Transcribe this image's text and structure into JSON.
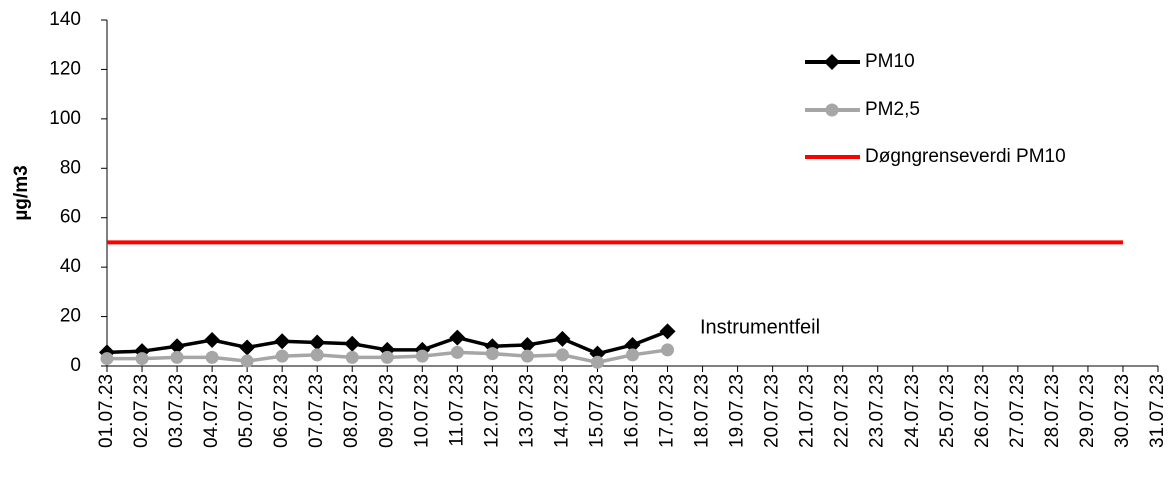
{
  "chart_data": {
    "type": "line",
    "y_label": "µg/m3",
    "annotation": "Instrumentfeil",
    "categories": [
      "01.07.23",
      "02.07.23",
      "03.07.23",
      "04.07.23",
      "05.07.23",
      "06.07.23",
      "07.07.23",
      "08.07.23",
      "09.07.23",
      "10.07.23",
      "11.07.23",
      "12.07.23",
      "13.07.23",
      "14.07.23",
      "15.07.23",
      "16.07.23",
      "17.07.23",
      "18.07.23",
      "19.07.23",
      "20.07.23",
      "21.07.23",
      "22.07.23",
      "23.07.23",
      "24.07.23",
      "25.07.23",
      "26.07.23",
      "27.07.23",
      "28.07.23",
      "29.07.23",
      "30.07.23",
      "31.07.23"
    ],
    "series": [
      {
        "name": "PM10",
        "color": "#000000",
        "marker": "diamond",
        "values": [
          5.5,
          6,
          8,
          10.5,
          7.5,
          10,
          9.5,
          9,
          6.5,
          6.5,
          11.5,
          8,
          8.5,
          11,
          5,
          8.5,
          14,
          null,
          null,
          null,
          null,
          null,
          null,
          null,
          null,
          null,
          null,
          null,
          null,
          null,
          null
        ]
      },
      {
        "name": "PM2,5",
        "color": "#a6a6a6",
        "marker": "circle",
        "values": [
          3,
          3,
          3.5,
          3.5,
          2,
          4,
          4.5,
          3.5,
          3.5,
          4,
          5.5,
          5,
          4,
          4.5,
          1.5,
          4.5,
          6.5,
          null,
          null,
          null,
          null,
          null,
          null,
          null,
          null,
          null,
          null,
          null,
          null,
          null,
          null
        ]
      },
      {
        "name": "Døgngrenseverdi PM10",
        "color": "#ff0000",
        "marker": "none",
        "values": [
          50,
          50,
          50,
          50,
          50,
          50,
          50,
          50,
          50,
          50,
          50,
          50,
          50,
          50,
          50,
          50,
          50,
          50,
          50,
          50,
          50,
          50,
          50,
          50,
          50,
          50,
          50,
          50,
          50,
          50,
          null
        ]
      }
    ],
    "ylim": [
      0,
      140
    ],
    "yticks": [
      0,
      20,
      40,
      60,
      80,
      100,
      120,
      140
    ],
    "legend": "upper right",
    "grid": false
  }
}
